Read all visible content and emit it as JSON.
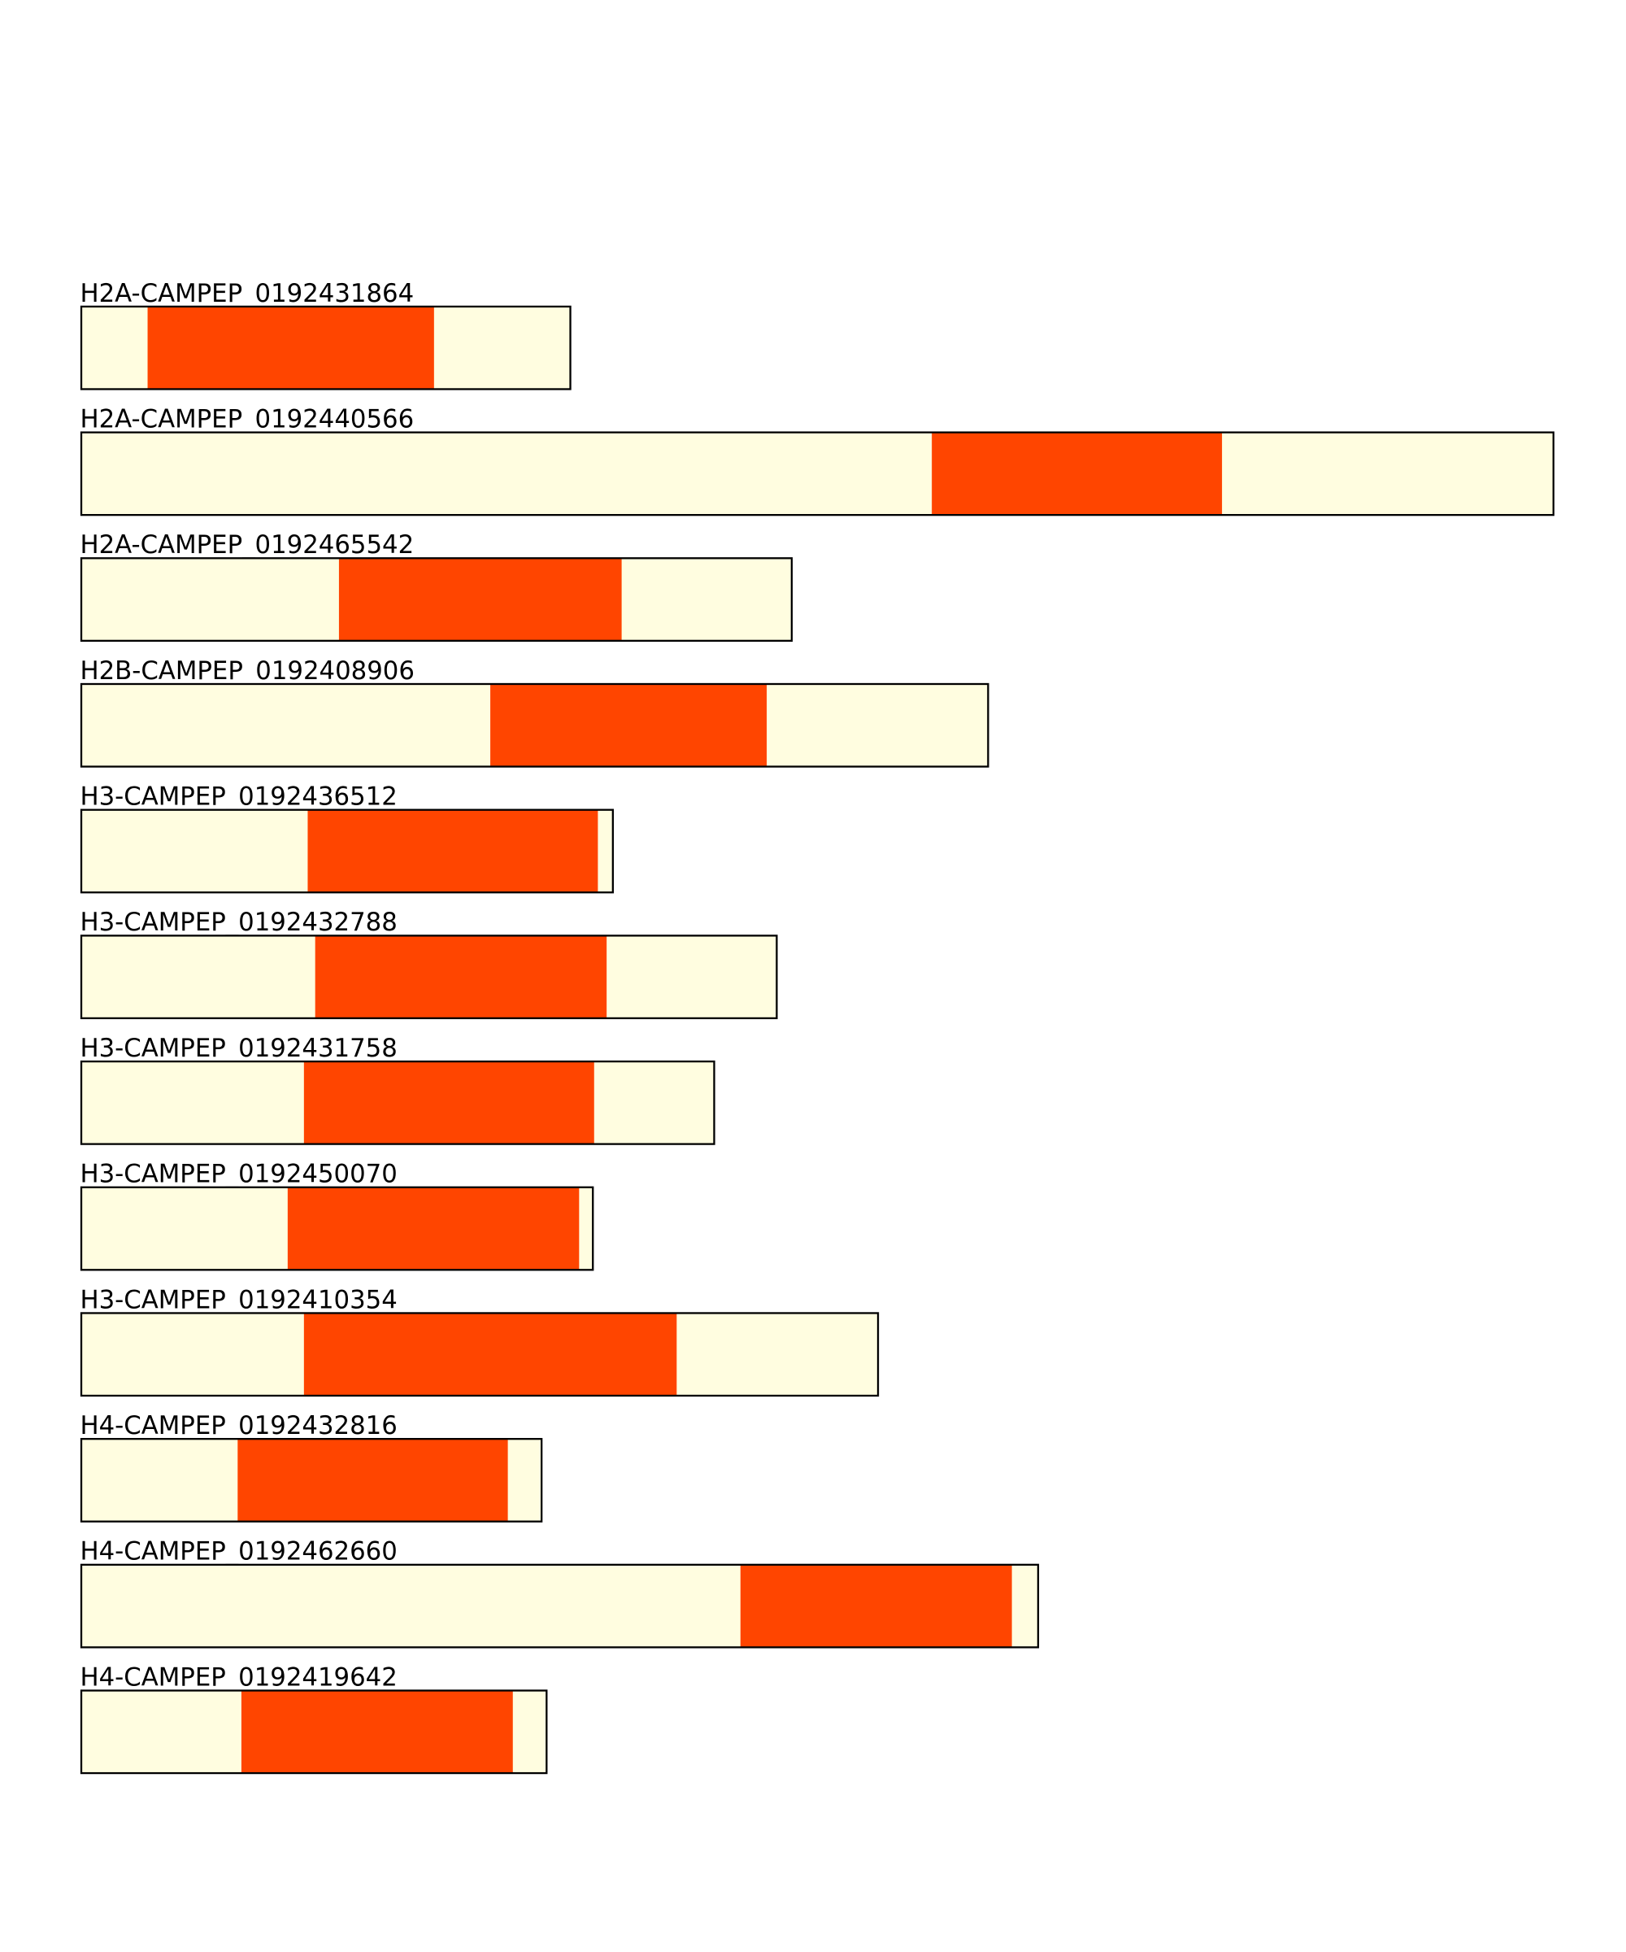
{
  "colors": {
    "sequence": "#FFFDE0",
    "domain": "#FF4500",
    "outline": "#000000"
  },
  "chart_data": {
    "type": "bar",
    "units": "relative",
    "rows": [
      {
        "label": "H2A-CAMPEP_0192431864",
        "length": 391,
        "domain_start": 53,
        "domain_end": 282
      },
      {
        "label": "H2A-CAMPEP_0192440566",
        "length": 1177,
        "domain_start": 680,
        "domain_end": 912
      },
      {
        "label": "H2A-CAMPEP_0192465542",
        "length": 568,
        "domain_start": 206,
        "domain_end": 432
      },
      {
        "label": "H2B-CAMPEP_0192408906",
        "length": 725,
        "domain_start": 327,
        "domain_end": 548
      },
      {
        "label": "H3-CAMPEP_0192436512",
        "length": 425,
        "domain_start": 181,
        "domain_end": 413
      },
      {
        "label": "H3-CAMPEP_0192432788",
        "length": 556,
        "domain_start": 187,
        "domain_end": 420
      },
      {
        "label": "H3-CAMPEP_0192431758",
        "length": 506,
        "domain_start": 178,
        "domain_end": 410
      },
      {
        "label": "H3-CAMPEP_0192450070",
        "length": 409,
        "domain_start": 165,
        "domain_end": 398
      },
      {
        "label": "H3-CAMPEP_0192410354",
        "length": 637,
        "domain_start": 178,
        "domain_end": 476
      },
      {
        "label": "H4-CAMPEP_0192432816",
        "length": 368,
        "domain_start": 125,
        "domain_end": 341
      },
      {
        "label": "H4-CAMPEP_0192462660",
        "length": 765,
        "domain_start": 527,
        "domain_end": 744
      },
      {
        "label": "H4-CAMPEP_0192419642",
        "length": 372,
        "domain_start": 128,
        "domain_end": 345
      }
    ]
  }
}
